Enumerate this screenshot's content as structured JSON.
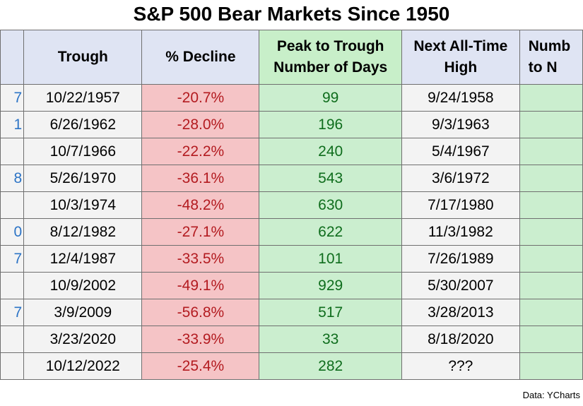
{
  "title": "S&P 500 Bear Markets Since 1950",
  "headers": {
    "trough": "Trough",
    "decline": "% Decline",
    "peak_to_trough": "Peak to Trough Number of Days",
    "next_ath": "Next All-Time High",
    "number_days_partial": "Numb to N"
  },
  "rows": [
    {
      "peak_tail": "7",
      "trough": "10/22/1957",
      "decline": "-20.7%",
      "days": "99",
      "next_ath": "9/24/1958"
    },
    {
      "peak_tail": "1",
      "trough": "6/26/1962",
      "decline": "-28.0%",
      "days": "196",
      "next_ath": "9/3/1963"
    },
    {
      "peak_tail": "",
      "trough": "10/7/1966",
      "decline": "-22.2%",
      "days": "240",
      "next_ath": "5/4/1967"
    },
    {
      "peak_tail": "8",
      "trough": "5/26/1970",
      "decline": "-36.1%",
      "days": "543",
      "next_ath": "3/6/1972"
    },
    {
      "peak_tail": "",
      "trough": "10/3/1974",
      "decline": "-48.2%",
      "days": "630",
      "next_ath": "7/17/1980"
    },
    {
      "peak_tail": "0",
      "trough": "8/12/1982",
      "decline": "-27.1%",
      "days": "622",
      "next_ath": "11/3/1982"
    },
    {
      "peak_tail": "7",
      "trough": "12/4/1987",
      "decline": "-33.5%",
      "days": "101",
      "next_ath": "7/26/1989"
    },
    {
      "peak_tail": "",
      "trough": "10/9/2002",
      "decline": "-49.1%",
      "days": "929",
      "next_ath": "5/30/2007"
    },
    {
      "peak_tail": "7",
      "trough": "3/9/2009",
      "decline": "-56.8%",
      "days": "517",
      "next_ath": "3/28/2013"
    },
    {
      "peak_tail": "",
      "trough": "3/23/2020",
      "decline": "-33.9%",
      "days": "33",
      "next_ath": "8/18/2020"
    },
    {
      "peak_tail": "",
      "trough": "10/12/2022",
      "decline": "-25.4%",
      "days": "282",
      "next_ath": "???"
    }
  ],
  "source": "Data: YCharts",
  "colors": {
    "header_bg": "#dfe4f3",
    "decline_bg": "#f5c4c6",
    "decline_text": "#b31b20",
    "days_bg": "#cbeecf",
    "days_text": "#0f6d1d",
    "peak_text": "#2c74c6"
  }
}
